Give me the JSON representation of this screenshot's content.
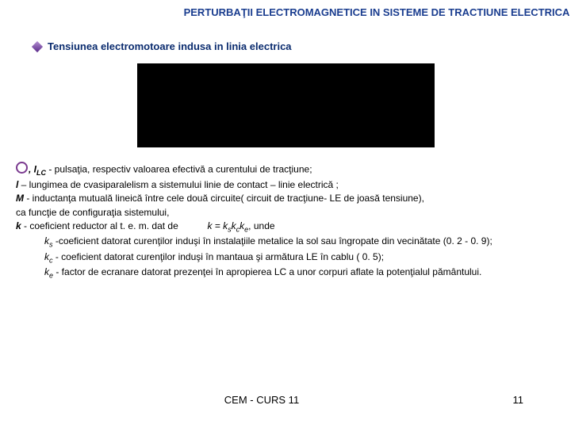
{
  "header": {
    "title": "PERTURBAŢII ELECTROMAGNETICE IN SISTEME DE TRACTIUNE ELECTRICA"
  },
  "subheading": {
    "text": "Tensiunea electromotoare indusa in linia electrica"
  },
  "definitions": {
    "omega_line_prefix": ", I",
    "omega_sub": "LC",
    "omega_line_rest": "  - pulsaţia, respectiv valoarea efectivă a curentului de tracţiune;",
    "l_line": "l – lungimea de cvasiparalelism a sistemului linie de contact – linie electrică ;",
    "M_line": "M - inductanţa mutuală lineică între cele două circuite( circuit de tracţiune- LE de joasă tensiune), ca funcţie de configuraţia sistemului,",
    "k_line_prefix": "k - coeficient reductor al t. e. m. dat de",
    "k_formula_k": "k = k",
    "k_formula_s": "s",
    "k_formula_kc": "k",
    "k_formula_c": "c",
    "k_formula_ke": "k",
    "k_formula_e": "e",
    "k_formula_suffix": ", unde",
    "ks_pre": "k",
    "ks_sub": "s",
    "ks_line": "  -coeficient datorat curenţilor induşi în instalaţiile metalice la sol sau îngropate din vecinătate (0. 2 - 0. 9);",
    "kc_pre": "k",
    "kc_sub": "c",
    "kc_line": " - coeficient datorat curenţilor induşi în mantaua şi armătura LE în cablu ( 0. 5);",
    "ke_pre": "k",
    "ke_sub": "e",
    "ke_line": " - factor de ecranare datorat prezenţei în apropierea LC a unor corpuri aflate la potenţialul pământului."
  },
  "footer": {
    "course": "CEM - CURS 11",
    "page": "11"
  }
}
